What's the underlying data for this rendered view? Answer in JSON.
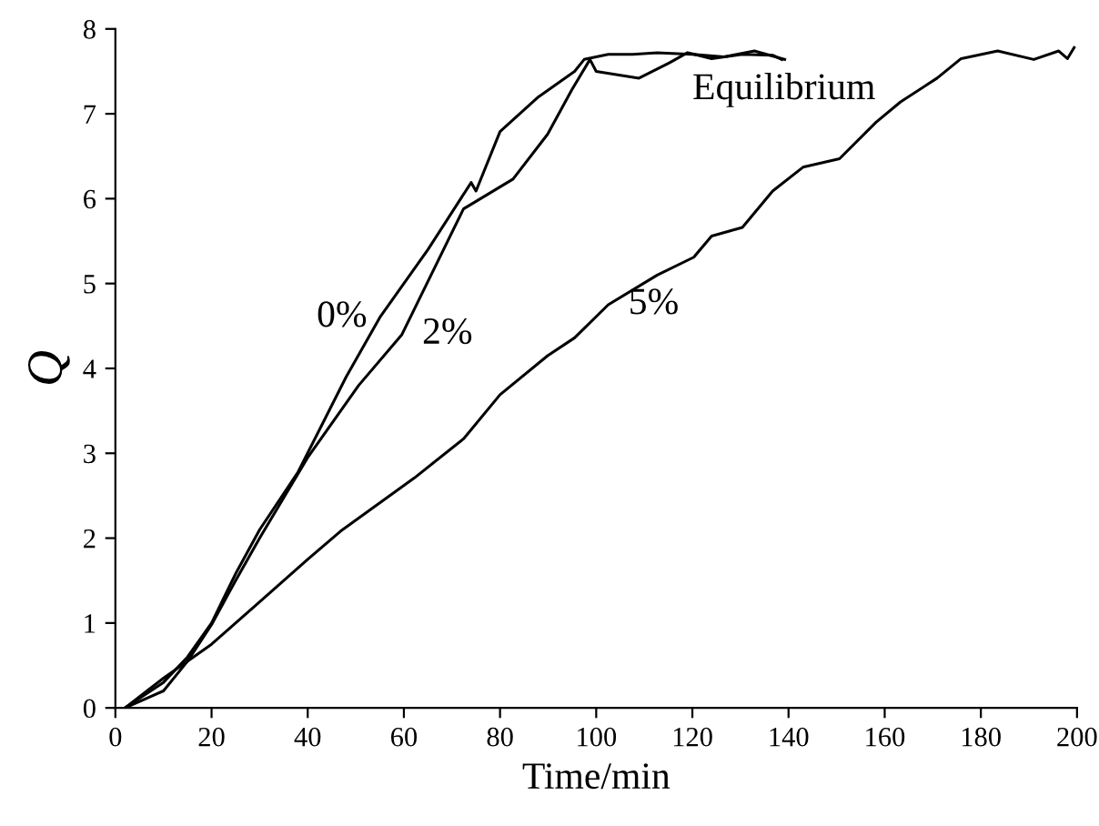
{
  "chart_data": {
    "type": "line",
    "xlabel": "Time/min",
    "ylabel": "Q",
    "xlim": [
      0,
      200
    ],
    "xticks": [
      0,
      20,
      40,
      60,
      80,
      100,
      120,
      140,
      160,
      180,
      200
    ],
    "ylim": [
      0,
      8
    ],
    "yticks": [
      0,
      1,
      2,
      3,
      4,
      5,
      6,
      7,
      8
    ],
    "grid": false,
    "legend": false,
    "marker": "none",
    "line_style": "solid",
    "annotations": [
      "Equilibrium"
    ],
    "series": [
      {
        "name": "0%",
        "color": "#000000",
        "x": [
          2,
          10,
          15,
          20,
          25,
          30,
          38,
          48,
          55,
          65,
          74,
          75,
          80,
          88,
          95.5,
          97.5,
          102.5,
          107.6,
          112.7,
          120,
          126.6,
          132.9,
          139.2
        ],
        "values": [
          0,
          0.3,
          0.6,
          1.0,
          1.58,
          2.1,
          2.78,
          3.9,
          4.6,
          5.4,
          6.19,
          6.09,
          6.79,
          7.2,
          7.5,
          7.64,
          7.7,
          7.7,
          7.72,
          7.7,
          7.67,
          7.74,
          7.64
        ]
      },
      {
        "name": "2%",
        "color": "#000000",
        "x": [
          2,
          10,
          15,
          20,
          25,
          30,
          40,
          50.6,
          59.6,
          72.4,
          82.7,
          89.9,
          94.9,
          98.7,
          100,
          108.9,
          115.2,
          119,
          124,
          130.4,
          136.7,
          138.6
        ],
        "values": [
          0,
          0.2,
          0.55,
          0.98,
          1.5,
          2.0,
          2.95,
          3.8,
          4.4,
          5.88,
          6.23,
          6.76,
          7.28,
          7.64,
          7.5,
          7.42,
          7.6,
          7.72,
          7.65,
          7.7,
          7.69,
          7.64
        ]
      },
      {
        "name": "5%",
        "color": "#000000",
        "x": [
          2,
          10,
          20,
          30,
          40,
          46.8,
          62.2,
          72.4,
          80,
          89.9,
          95.5,
          102.5,
          112.7,
          120.3,
          124,
          130.4,
          136.7,
          143,
          150.6,
          158.2,
          163.3,
          170.9,
          175.9,
          183.5,
          191,
          196.2,
          198,
          199.4
        ],
        "values": [
          0,
          0.35,
          0.75,
          1.25,
          1.75,
          2.08,
          2.71,
          3.17,
          3.69,
          4.15,
          4.36,
          4.75,
          5.1,
          5.31,
          5.56,
          5.66,
          6.09,
          6.37,
          6.47,
          6.9,
          7.14,
          7.42,
          7.65,
          7.74,
          7.64,
          7.74,
          7.65,
          7.78
        ]
      }
    ]
  }
}
